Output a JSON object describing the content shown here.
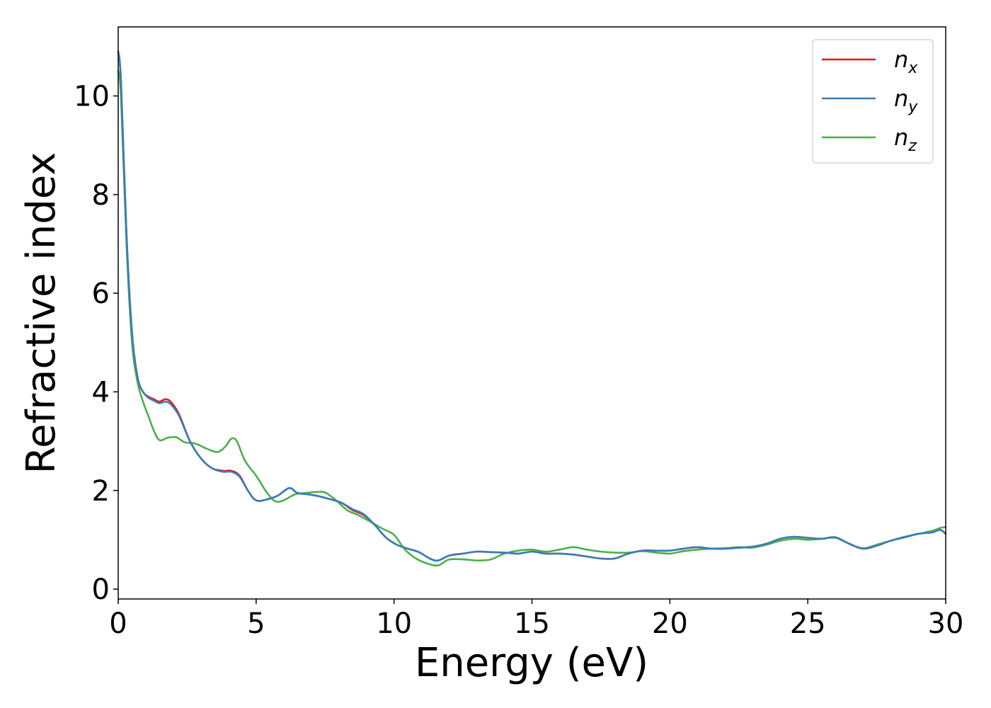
{
  "chart_data": {
    "type": "line",
    "xlabel": "Energy (eV)",
    "ylabel": "Refractive index",
    "xlim": [
      0,
      30
    ],
    "ylim": [
      -0.2,
      11.4
    ],
    "xticks": [
      0,
      5,
      10,
      15,
      20,
      25,
      30
    ],
    "xtick_labels": [
      "0",
      "5",
      "10",
      "15",
      "20",
      "25",
      "30"
    ],
    "yticks": [
      0,
      2,
      4,
      6,
      8,
      10
    ],
    "ytick_labels": [
      "0",
      "2",
      "4",
      "6",
      "8",
      "10"
    ],
    "grid": false,
    "legend_position": "top-right",
    "series": [
      {
        "name": "n_x",
        "label_main": "n",
        "label_sub": "x",
        "color": "#e41a1c",
        "x": [
          0,
          0.1,
          0.3,
          0.5,
          0.7,
          0.9,
          1.1,
          1.3,
          1.5,
          1.7,
          1.9,
          2.2,
          2.6,
          3.0,
          3.4,
          3.8,
          4.1,
          4.4,
          4.7,
          5.0,
          5.4,
          5.8,
          6.2,
          6.5,
          6.9,
          7.3,
          7.7,
          8.1,
          8.5,
          8.9,
          9.3,
          9.7,
          10.1,
          10.5,
          10.9,
          11.3,
          11.6,
          12.0,
          12.5,
          13.0,
          13.5,
          14.0,
          14.5,
          15.0,
          15.5,
          16.0,
          16.5,
          17.0,
          17.5,
          18.0,
          18.5,
          19.0,
          19.5,
          20.0,
          20.5,
          21.0,
          21.5,
          22.0,
          22.5,
          23.0,
          23.5,
          24.0,
          24.5,
          25.0,
          25.5,
          26.0,
          26.5,
          27.0,
          27.5,
          28.0,
          28.5,
          29.0,
          29.5,
          29.8,
          30.0
        ],
        "y": [
          10.9,
          10.3,
          7.2,
          5.2,
          4.3,
          4.0,
          3.9,
          3.85,
          3.8,
          3.85,
          3.8,
          3.55,
          3.0,
          2.65,
          2.45,
          2.4,
          2.4,
          2.3,
          2.0,
          1.8,
          1.82,
          1.9,
          2.05,
          1.95,
          1.92,
          1.88,
          1.82,
          1.75,
          1.6,
          1.5,
          1.3,
          1.05,
          0.9,
          0.82,
          0.75,
          0.62,
          0.58,
          0.68,
          0.72,
          0.76,
          0.75,
          0.74,
          0.72,
          0.76,
          0.72,
          0.72,
          0.7,
          0.66,
          0.62,
          0.62,
          0.72,
          0.78,
          0.78,
          0.78,
          0.82,
          0.85,
          0.82,
          0.82,
          0.84,
          0.86,
          0.92,
          1.02,
          1.06,
          1.04,
          1.02,
          1.05,
          0.92,
          0.82,
          0.88,
          0.98,
          1.05,
          1.12,
          1.15,
          1.2,
          1.12
        ]
      },
      {
        "name": "n_y",
        "label_main": "n",
        "label_sub": "y",
        "color": "#377eb8",
        "x": [
          0,
          0.1,
          0.3,
          0.5,
          0.7,
          0.9,
          1.1,
          1.3,
          1.5,
          1.7,
          1.9,
          2.2,
          2.6,
          3.0,
          3.4,
          3.8,
          4.1,
          4.4,
          4.7,
          5.0,
          5.4,
          5.8,
          6.2,
          6.5,
          6.9,
          7.3,
          7.7,
          8.1,
          8.5,
          8.9,
          9.3,
          9.7,
          10.1,
          10.5,
          10.9,
          11.3,
          11.6,
          12.0,
          12.5,
          13.0,
          13.5,
          14.0,
          14.5,
          15.0,
          15.5,
          16.0,
          16.5,
          17.0,
          17.5,
          18.0,
          18.5,
          19.0,
          19.5,
          20.0,
          20.5,
          21.0,
          21.5,
          22.0,
          22.5,
          23.0,
          23.5,
          24.0,
          24.5,
          25.0,
          25.5,
          26.0,
          26.5,
          27.0,
          27.5,
          28.0,
          28.5,
          29.0,
          29.5,
          29.8,
          30.0
        ],
        "y": [
          10.9,
          10.3,
          7.2,
          5.2,
          4.3,
          4.0,
          3.88,
          3.82,
          3.77,
          3.8,
          3.75,
          3.52,
          3.0,
          2.65,
          2.45,
          2.38,
          2.38,
          2.28,
          2.0,
          1.8,
          1.82,
          1.9,
          2.05,
          1.95,
          1.92,
          1.88,
          1.82,
          1.75,
          1.62,
          1.52,
          1.3,
          1.05,
          0.9,
          0.82,
          0.75,
          0.62,
          0.58,
          0.68,
          0.72,
          0.76,
          0.75,
          0.74,
          0.72,
          0.76,
          0.72,
          0.72,
          0.7,
          0.66,
          0.62,
          0.62,
          0.72,
          0.78,
          0.78,
          0.78,
          0.82,
          0.85,
          0.82,
          0.82,
          0.84,
          0.86,
          0.92,
          1.02,
          1.06,
          1.04,
          1.02,
          1.05,
          0.92,
          0.82,
          0.88,
          0.98,
          1.05,
          1.12,
          1.15,
          1.2,
          1.12
        ]
      },
      {
        "name": "n_z",
        "label_main": "n",
        "label_sub": "z",
        "color": "#4daf4a",
        "x": [
          0,
          0.1,
          0.3,
          0.5,
          0.7,
          0.9,
          1.1,
          1.3,
          1.5,
          1.8,
          2.1,
          2.4,
          2.8,
          3.2,
          3.6,
          3.9,
          4.1,
          4.3,
          4.6,
          5.0,
          5.4,
          5.7,
          6.0,
          6.4,
          6.8,
          7.2,
          7.5,
          7.9,
          8.3,
          8.7,
          9.1,
          9.6,
          10.0,
          10.4,
          10.8,
          11.2,
          11.6,
          12.0,
          12.6,
          13.0,
          13.5,
          14.0,
          14.5,
          15.0,
          15.5,
          16.0,
          16.5,
          17.0,
          17.5,
          18.0,
          18.5,
          19.0,
          19.5,
          20.0,
          20.5,
          21.0,
          21.5,
          22.0,
          22.5,
          23.0,
          23.5,
          24.0,
          24.5,
          25.0,
          25.5,
          26.0,
          26.5,
          27.0,
          27.5,
          28.0,
          28.5,
          29.0,
          29.5,
          29.8,
          30.0
        ],
        "y": [
          10.5,
          10.0,
          7.0,
          5.0,
          4.2,
          3.8,
          3.5,
          3.2,
          3.02,
          3.07,
          3.08,
          2.98,
          2.95,
          2.85,
          2.78,
          2.9,
          3.05,
          3.0,
          2.6,
          2.3,
          1.95,
          1.78,
          1.8,
          1.92,
          1.95,
          1.97,
          1.96,
          1.8,
          1.6,
          1.5,
          1.38,
          1.22,
          1.1,
          0.8,
          0.62,
          0.52,
          0.48,
          0.6,
          0.6,
          0.58,
          0.6,
          0.72,
          0.78,
          0.8,
          0.76,
          0.8,
          0.85,
          0.8,
          0.76,
          0.74,
          0.74,
          0.77,
          0.74,
          0.72,
          0.77,
          0.8,
          0.82,
          0.83,
          0.85,
          0.84,
          0.9,
          0.98,
          1.02,
          1.0,
          1.02,
          1.04,
          0.92,
          0.83,
          0.9,
          0.98,
          1.06,
          1.12,
          1.18,
          1.24,
          1.26
        ]
      }
    ]
  }
}
